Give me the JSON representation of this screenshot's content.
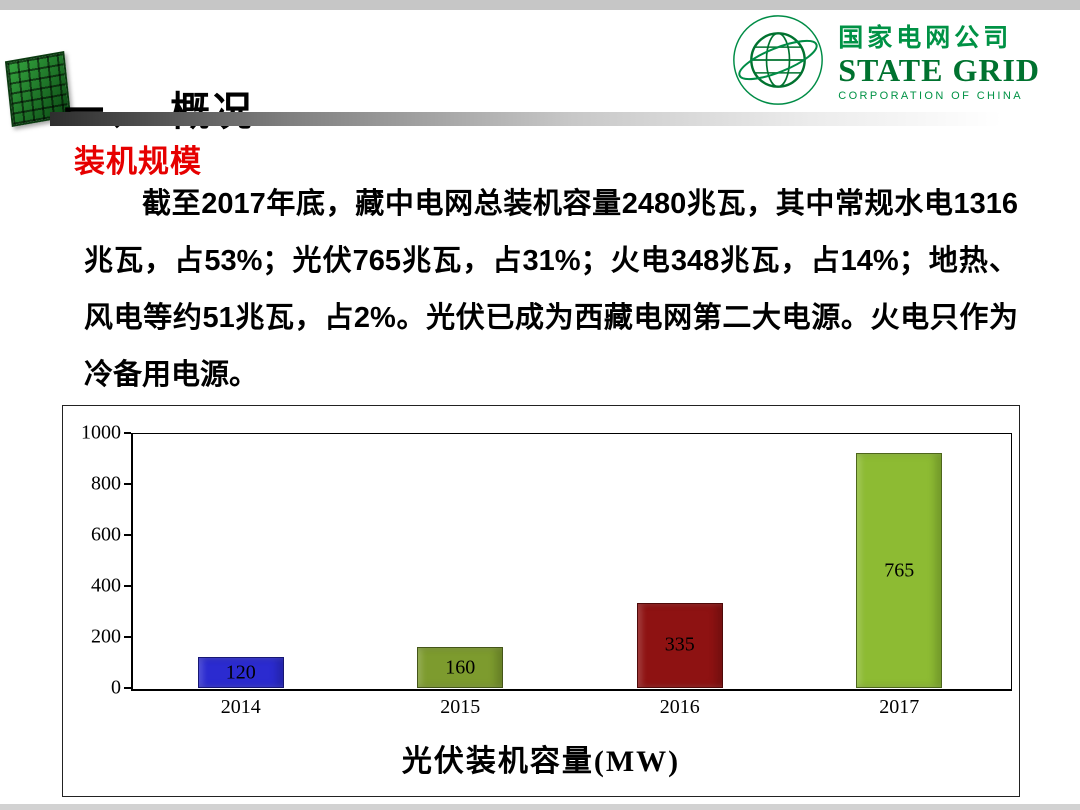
{
  "slide": {
    "title": "一、　概况",
    "subtitle": "装机规模",
    "paragraph": "截至2017年底，藏中电网总装机容量2480兆瓦，其中常规水电1316兆瓦，占53%；光伏765兆瓦，占31%；火电348兆瓦，占14%；地热、风电等约51兆瓦，占2%。光伏已成为西藏电网第二大电源。火电只作为冷备用电源。"
  },
  "logo": {
    "company_cn": "国家电网公司",
    "company_en": "STATE GRID",
    "company_en_sub": "CORPORATION OF CHINA",
    "brand_green": "#009245"
  },
  "chart_data": {
    "type": "bar",
    "title": "光伏装机容量(MW)",
    "categories": [
      "2014",
      "2015",
      "2016",
      "2017"
    ],
    "values": [
      120,
      160,
      335,
      765
    ],
    "bar_colors": [
      "#2b2bd0",
      "#7d9b2e",
      "#8e1212",
      "#8dbb33"
    ],
    "xlabel": "",
    "ylabel": "",
    "ylim": [
      0,
      1000
    ],
    "yticks": [
      0,
      200,
      400,
      600,
      800,
      1000
    ],
    "grid": false,
    "legend": false,
    "bar_display_heights": [
      120,
      160,
      335,
      920
    ]
  }
}
